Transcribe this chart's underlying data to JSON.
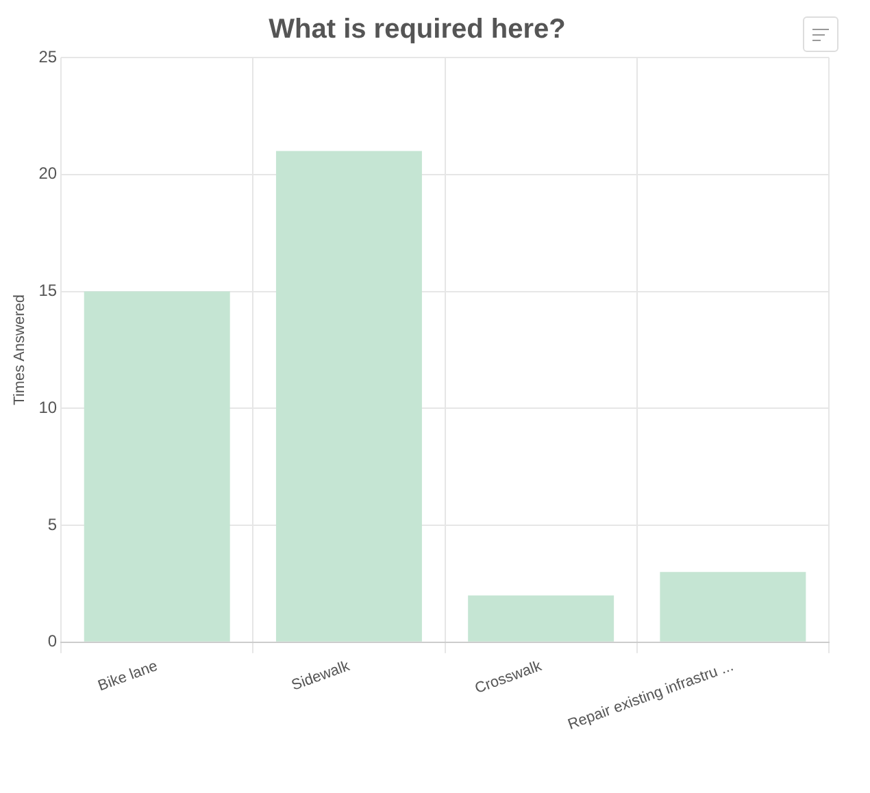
{
  "chart_data": {
    "type": "bar",
    "title": "What is required here?",
    "ylabel": "Times Answered",
    "categories": [
      "Bike lane",
      "Sidewalk",
      "Crosswalk",
      "Repair existing infrastru ..."
    ],
    "values": [
      15,
      21,
      2,
      3
    ],
    "color": "#c5e5d3",
    "ylim": [
      0,
      25
    ],
    "yticks": [
      0,
      5,
      10,
      15,
      20,
      25
    ],
    "grid": true,
    "legend": false
  }
}
